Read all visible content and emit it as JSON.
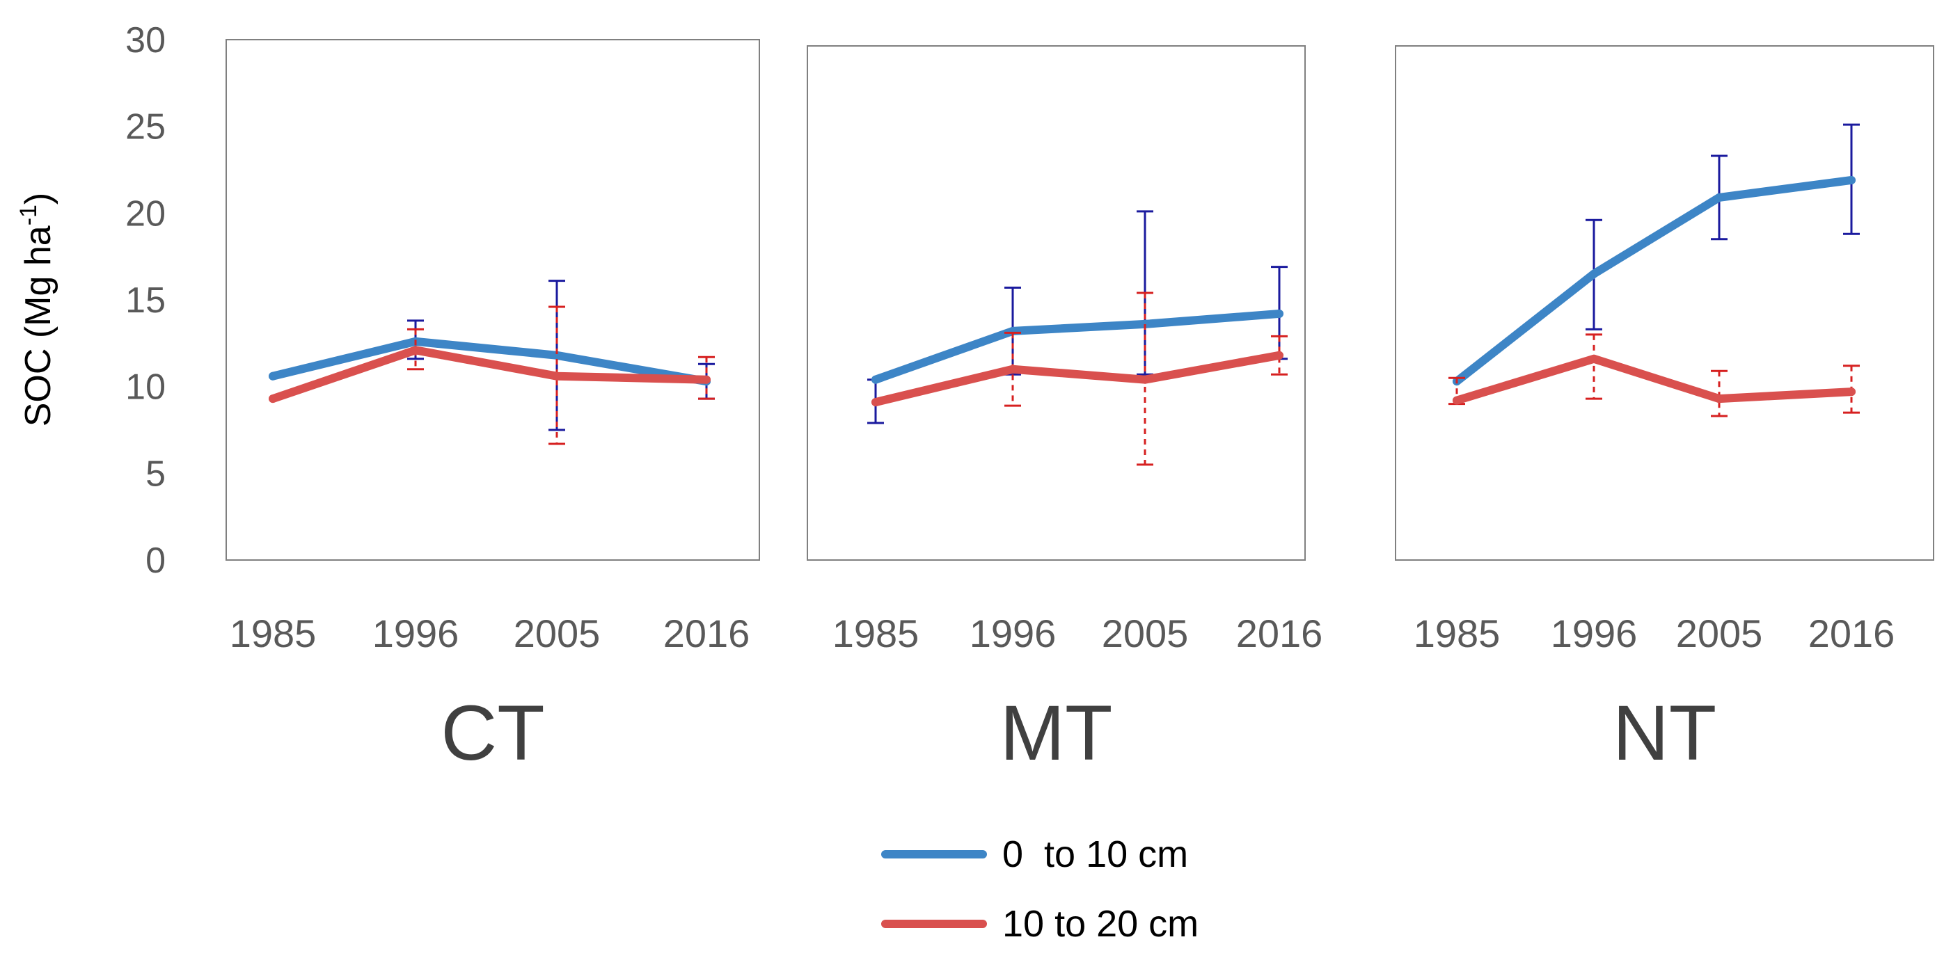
{
  "chart_data": {
    "type": "line",
    "ylabel": "SOC (Mg ha",
    "ylabel_superscript": "-1",
    "ylabel_close": ")",
    "ylim": [
      0,
      30
    ],
    "yticks": [
      0,
      5,
      10,
      15,
      20,
      25,
      30
    ],
    "ytick_labels": [
      "0",
      "5",
      "10",
      "15",
      "20",
      "25",
      "30"
    ],
    "categories": [
      "1985",
      "1996",
      "2005",
      "2016"
    ],
    "grid": false,
    "legend_position": "bottom-center",
    "colors": {
      "series_0_10": "#3d85c6",
      "series_10_20": "#d9504e",
      "error_0_10": "#1a1a9e",
      "error_10_20": "#d62020",
      "frame": "#808080"
    },
    "series_names": [
      "0  to 10 cm",
      "10 to 20 cm"
    ],
    "panels": [
      {
        "name": "CT",
        "series": [
          {
            "name": "0  to 10 cm",
            "values": [
              10.6,
              12.6,
              11.8,
              10.3
            ],
            "err_low": [
              null,
              11.6,
              7.5,
              9.3
            ],
            "err_high": [
              null,
              13.8,
              16.1,
              11.3
            ]
          },
          {
            "name": "10 to 20 cm",
            "values": [
              9.3,
              12.1,
              10.6,
              10.4
            ],
            "err_low": [
              null,
              11.0,
              6.7,
              9.3
            ],
            "err_high": [
              null,
              13.3,
              14.6,
              11.7
            ]
          }
        ]
      },
      {
        "name": "MT",
        "series": [
          {
            "name": "0  to 10 cm",
            "values": [
              10.4,
              13.2,
              13.6,
              14.2
            ],
            "err_low": [
              7.9,
              10.7,
              10.7,
              11.6
            ],
            "err_high": [
              10.4,
              15.7,
              20.1,
              16.9
            ]
          },
          {
            "name": "10 to 20 cm",
            "values": [
              9.1,
              11.0,
              10.4,
              11.8
            ],
            "err_low": [
              null,
              8.9,
              5.5,
              10.7
            ],
            "err_high": [
              null,
              13.1,
              15.4,
              12.9
            ]
          }
        ]
      },
      {
        "name": "NT",
        "series": [
          {
            "name": "0  to 10 cm",
            "values": [
              10.3,
              16.5,
              20.9,
              21.9
            ],
            "err_low": [
              null,
              13.3,
              18.5,
              18.8
            ],
            "err_high": [
              null,
              19.6,
              23.3,
              25.1
            ]
          },
          {
            "name": "10 to 20 cm",
            "values": [
              9.2,
              11.6,
              9.3,
              9.7
            ],
            "err_low": [
              9.0,
              9.3,
              8.3,
              8.5
            ],
            "err_high": [
              10.5,
              13.0,
              10.9,
              11.2
            ]
          }
        ]
      }
    ]
  }
}
